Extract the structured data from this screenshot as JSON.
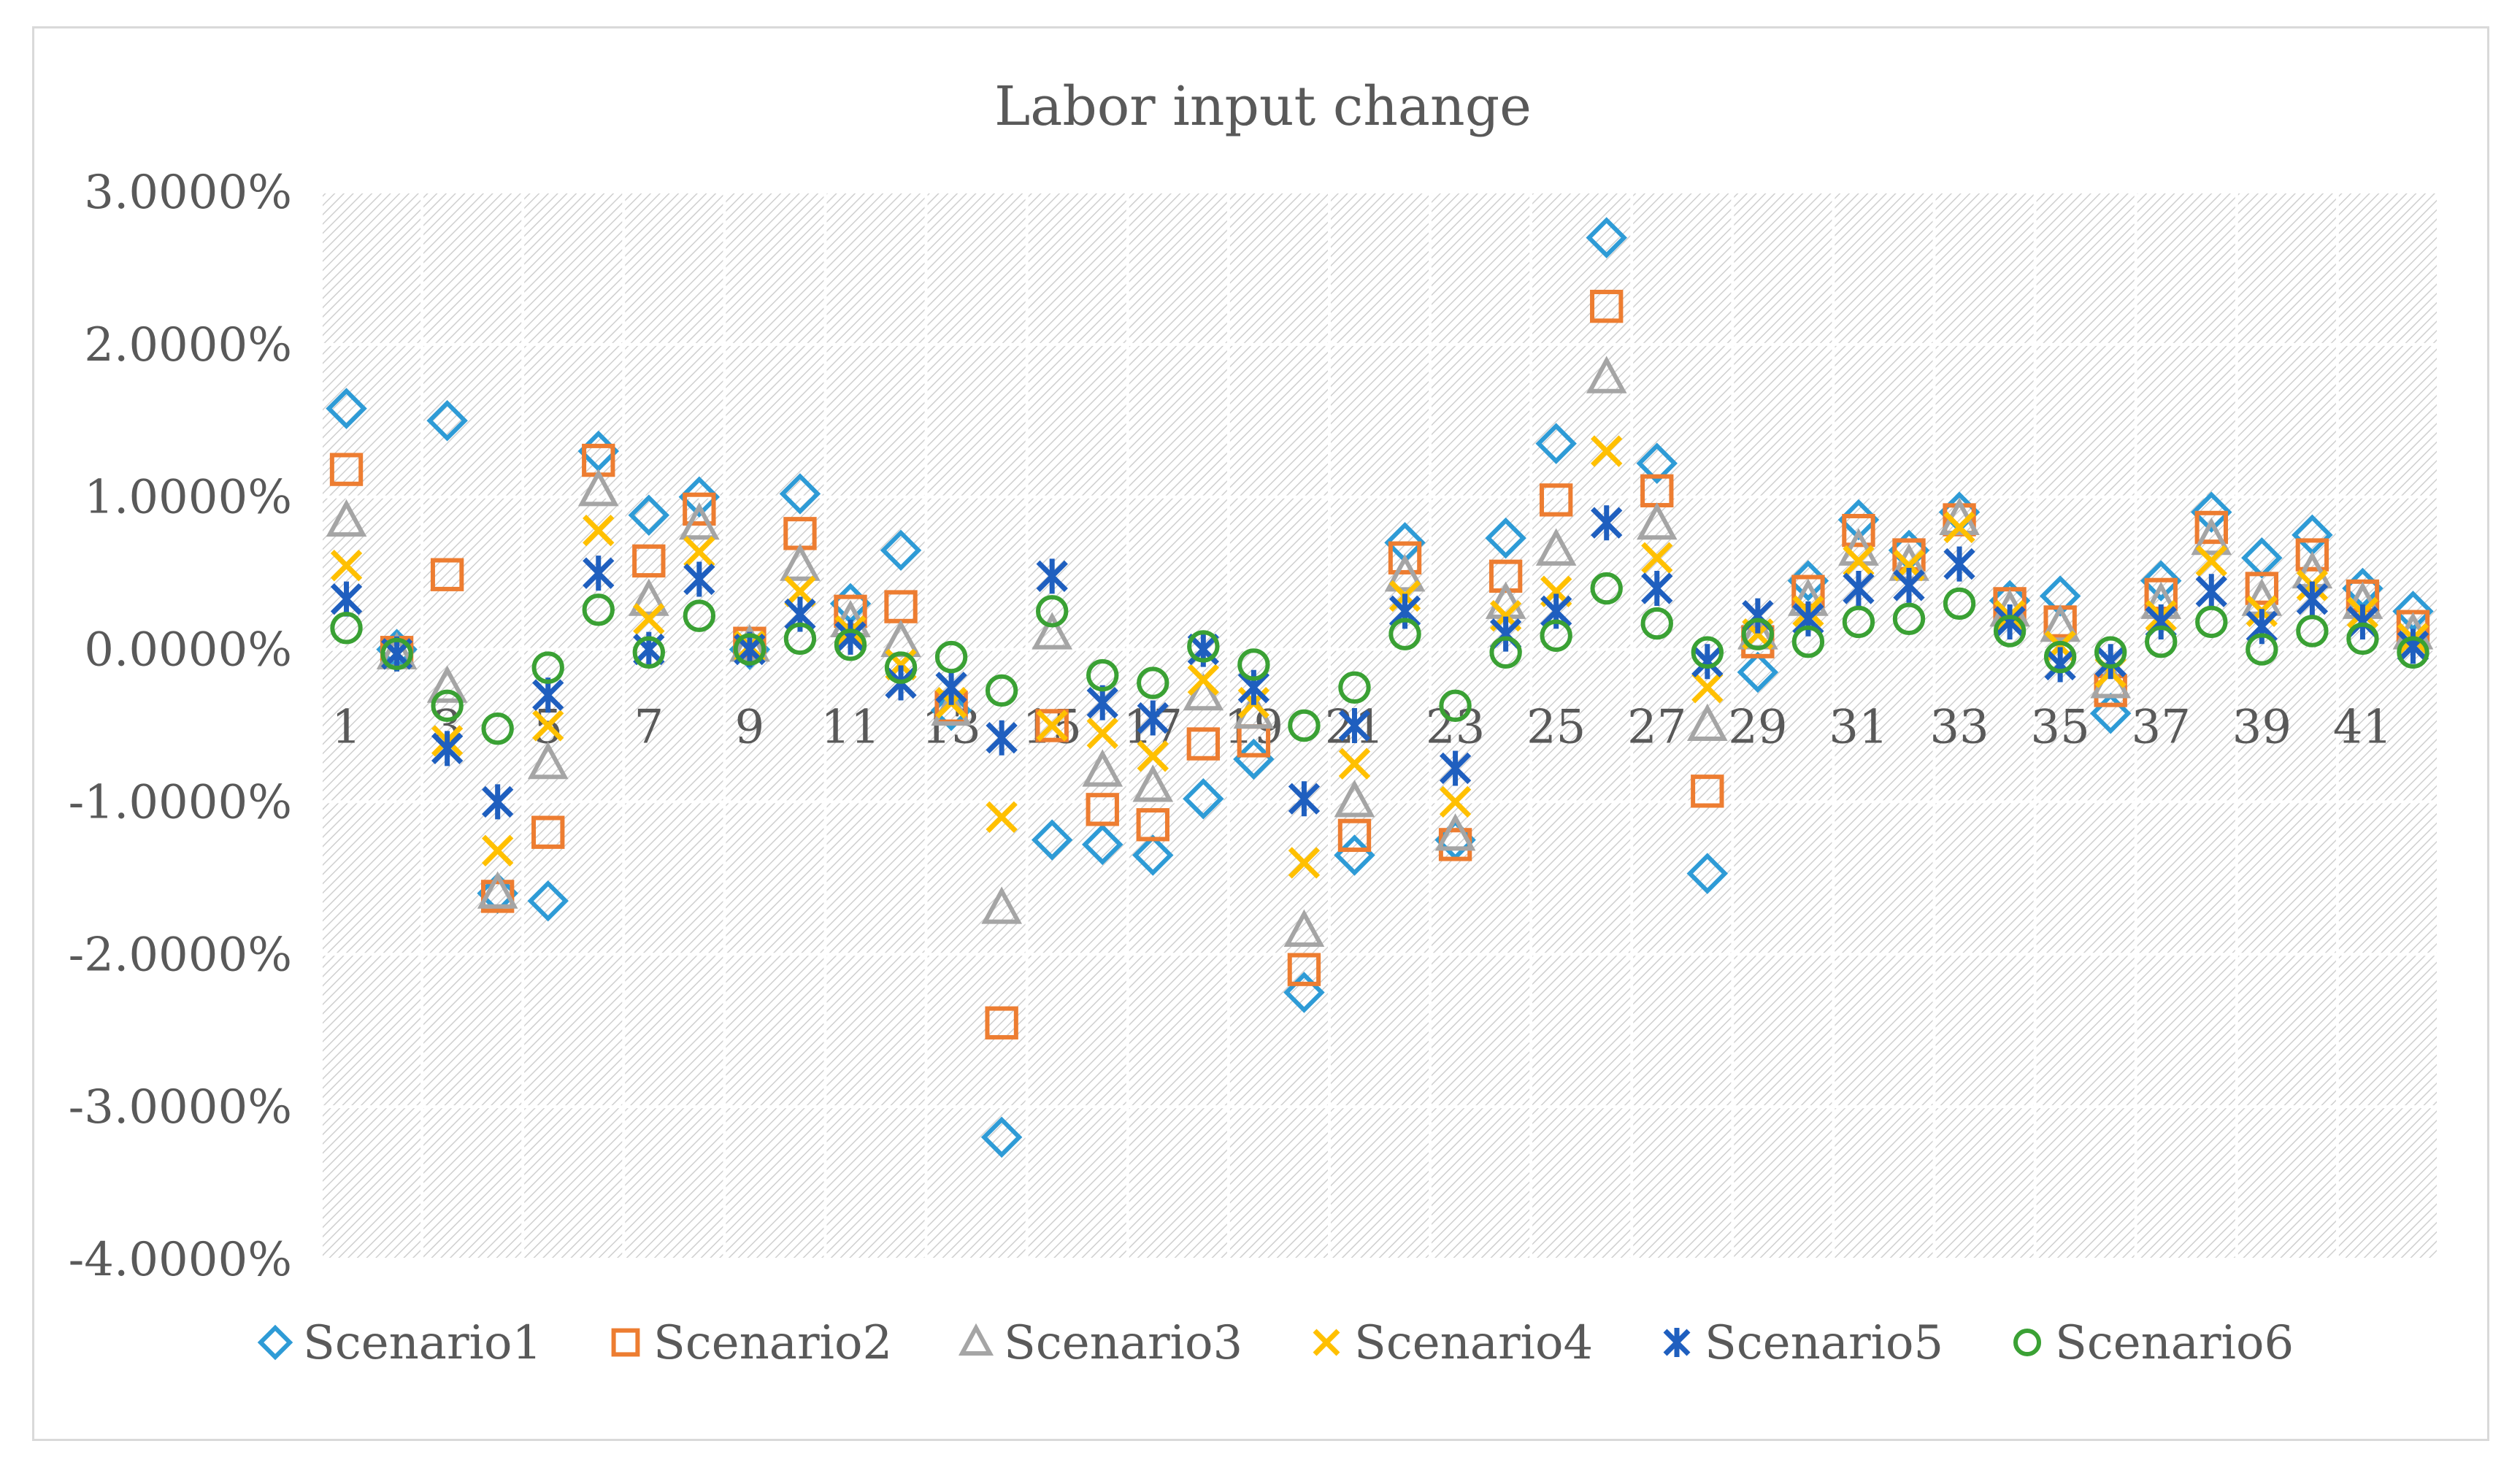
{
  "chart_data": {
    "type": "scatter",
    "title": "Labor input change",
    "xlabel": "",
    "ylabel": "",
    "x": [
      1,
      2,
      3,
      4,
      5,
      6,
      7,
      8,
      9,
      10,
      11,
      12,
      13,
      14,
      15,
      16,
      17,
      18,
      19,
      20,
      21,
      22,
      23,
      24,
      25,
      26,
      27,
      28,
      29,
      30,
      31,
      32,
      33,
      34,
      35,
      36,
      37,
      38,
      39,
      40,
      41,
      42
    ],
    "xlim": [
      0.5,
      42.5
    ],
    "x_tick_labels": [
      "1",
      "3",
      "5",
      "7",
      "9",
      "11",
      "13",
      "15",
      "17",
      "19",
      "21",
      "23",
      "25",
      "27",
      "29",
      "31",
      "33",
      "35",
      "37",
      "39",
      "41"
    ],
    "x_tick_positions": [
      1,
      3,
      5,
      7,
      9,
      11,
      13,
      15,
      17,
      19,
      21,
      23,
      25,
      27,
      29,
      31,
      33,
      35,
      37,
      39,
      41
    ],
    "ylim": [
      -4,
      3
    ],
    "y_ticks": [
      3,
      2,
      1,
      0,
      -1,
      -2,
      -3,
      -4
    ],
    "y_tick_labels": [
      "3.0000%",
      "2.0000%",
      "1.0000%",
      "0.0000%",
      "-1.0000%",
      "-2.0000%",
      "-3.0000%",
      "-4.0000%"
    ],
    "y_unit": "percent",
    "grid": true,
    "legend_position": "bottom",
    "series": [
      {
        "name": "Scenario1",
        "marker": "diamond",
        "color": "#2e9bd6",
        "values": [
          1.58,
          0.0,
          1.5,
          -1.6,
          -1.65,
          1.3,
          0.88,
          1.0,
          0.0,
          1.02,
          0.3,
          0.65,
          -0.4,
          -3.2,
          -1.25,
          -1.28,
          -1.35,
          -0.98,
          -0.72,
          -2.25,
          -1.35,
          0.7,
          -1.25,
          0.73,
          1.35,
          2.7,
          1.22,
          -1.47,
          -0.15,
          0.45,
          0.85,
          0.65,
          0.9,
          0.32,
          0.35,
          -0.42,
          0.45,
          0.9,
          0.6,
          0.75,
          0.4,
          0.25
        ]
      },
      {
        "name": "Scenario2",
        "marker": "square",
        "color": "#ed7d31",
        "values": [
          1.18,
          -0.02,
          0.49,
          -1.62,
          -1.2,
          1.24,
          0.58,
          0.92,
          0.04,
          0.76,
          0.25,
          0.28,
          -0.38,
          -2.45,
          -0.5,
          -1.05,
          -1.15,
          -0.62,
          -0.6,
          -2.1,
          -1.22,
          0.6,
          -1.28,
          0.48,
          0.98,
          2.25,
          1.04,
          -0.93,
          0.05,
          0.38,
          0.78,
          0.62,
          0.85,
          0.3,
          0.18,
          -0.27,
          0.36,
          0.8,
          0.4,
          0.62,
          0.35,
          0.15
        ]
      },
      {
        "name": "Scenario3",
        "marker": "triangle",
        "color": "#a5a5a5",
        "values": [
          0.84,
          -0.03,
          -0.25,
          -1.6,
          -0.75,
          1.04,
          0.32,
          0.82,
          0.02,
          0.55,
          0.18,
          0.05,
          -0.4,
          -1.7,
          0.1,
          -0.8,
          -0.9,
          -0.3,
          -0.42,
          -1.85,
          -1.0,
          0.48,
          -1.22,
          0.3,
          0.65,
          1.78,
          0.82,
          -0.5,
          0.1,
          0.32,
          0.65,
          0.55,
          0.85,
          0.25,
          0.15,
          -0.22,
          0.3,
          0.72,
          0.32,
          0.5,
          0.3,
          0.1
        ]
      },
      {
        "name": "Scenario4",
        "marker": "x",
        "color": "#ffc000",
        "values": [
          0.55,
          -0.03,
          -0.6,
          -1.32,
          -0.5,
          0.78,
          0.2,
          0.64,
          0.02,
          0.38,
          0.12,
          -0.1,
          -0.35,
          -1.1,
          -0.5,
          -0.55,
          -0.7,
          -0.2,
          -0.35,
          -1.4,
          -0.75,
          0.35,
          -1.0,
          0.22,
          0.38,
          1.3,
          0.6,
          -0.25,
          0.1,
          0.25,
          0.58,
          0.55,
          0.8,
          0.22,
          0.02,
          -0.15,
          0.22,
          0.58,
          0.25,
          0.42,
          0.24,
          0.07
        ]
      },
      {
        "name": "Scenario5",
        "marker": "asterisk",
        "color": "#1f5fbf",
        "values": [
          0.33,
          -0.03,
          -0.65,
          -1.0,
          -0.3,
          0.5,
          0.0,
          0.46,
          0.0,
          0.23,
          0.08,
          -0.22,
          -0.25,
          -0.58,
          0.48,
          -0.35,
          -0.45,
          0.0,
          -0.25,
          -0.98,
          -0.5,
          0.25,
          -0.78,
          0.1,
          0.25,
          0.83,
          0.4,
          -0.08,
          0.22,
          0.2,
          0.4,
          0.42,
          0.56,
          0.18,
          -0.1,
          -0.08,
          0.18,
          0.38,
          0.15,
          0.33,
          0.18,
          0.02
        ]
      },
      {
        "name": "Scenario6",
        "marker": "circle",
        "color": "#3aa134",
        "values": [
          0.14,
          -0.03,
          -0.37,
          -0.52,
          -0.12,
          0.26,
          -0.02,
          0.22,
          0.0,
          0.07,
          0.03,
          -0.12,
          -0.05,
          -0.27,
          0.25,
          -0.17,
          -0.22,
          0.02,
          -0.1,
          -0.5,
          -0.25,
          0.1,
          -0.37,
          -0.02,
          0.09,
          0.4,
          0.17,
          -0.02,
          0.1,
          0.05,
          0.18,
          0.2,
          0.3,
          0.12,
          -0.05,
          -0.02,
          0.05,
          0.18,
          0.0,
          0.12,
          0.07,
          -0.02
        ]
      }
    ]
  }
}
